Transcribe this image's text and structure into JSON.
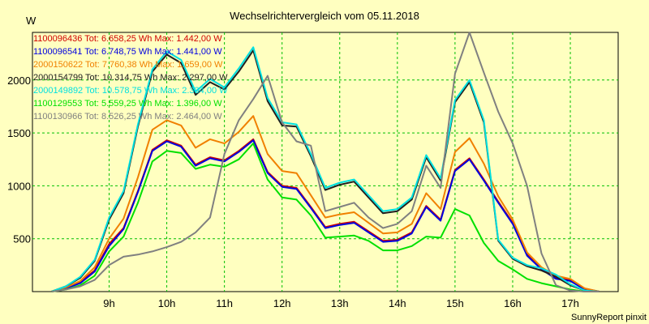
{
  "chart_data": {
    "type": "line",
    "title": "Wechselrichtervergleich vom 05.11.2018",
    "ylabel": "W",
    "xlim": [
      7.67,
      17.83
    ],
    "ylim": [
      0,
      2450
    ],
    "grid": true,
    "legend_position": "top-left",
    "x_ticks": [
      9,
      10,
      11,
      12,
      13,
      14,
      15,
      16,
      17
    ],
    "x_tick_labels": [
      "9h",
      "10h",
      "11h",
      "12h",
      "13h",
      "14h",
      "15h",
      "16h",
      "17h"
    ],
    "y_ticks": [
      500,
      1000,
      1500,
      2000
    ],
    "y_tick_labels": [
      "500",
      "1000",
      "1500",
      "2000"
    ],
    "x": [
      8.0,
      8.25,
      8.5,
      8.75,
      9.0,
      9.25,
      9.5,
      9.75,
      10.0,
      10.25,
      10.5,
      10.75,
      11.0,
      11.25,
      11.5,
      11.75,
      12.0,
      12.25,
      12.5,
      12.75,
      13.0,
      13.25,
      13.5,
      13.75,
      14.0,
      14.25,
      14.5,
      14.75,
      15.0,
      15.25,
      15.5,
      15.75,
      16.0,
      16.25,
      16.5,
      16.75,
      17.0,
      17.25,
      17.5
    ],
    "series": [
      {
        "name": "1100096436",
        "legend": "1100096436 Tot: 6.658,25 Wh Max: 1.442,00 W",
        "color": "#d00000",
        "values": [
          0,
          30,
          90,
          200,
          450,
          600,
          950,
          1340,
          1430,
          1380,
          1200,
          1270,
          1240,
          1330,
          1440,
          1130,
          1000,
          980,
          800,
          610,
          640,
          660,
          570,
          480,
          490,
          560,
          810,
          680,
          1150,
          1260,
          1060,
          850,
          650,
          350,
          220,
          130,
          110,
          30,
          0
        ]
      },
      {
        "name": "1100096541",
        "legend": "1100096541 Tot: 6.748,75 Wh Max: 1.441,00 W",
        "color": "#0000e0",
        "values": [
          0,
          30,
          80,
          190,
          430,
          590,
          940,
          1330,
          1420,
          1370,
          1190,
          1260,
          1230,
          1320,
          1430,
          1120,
          990,
          970,
          790,
          600,
          630,
          650,
          560,
          470,
          480,
          550,
          800,
          670,
          1140,
          1250,
          1050,
          840,
          640,
          340,
          210,
          120,
          100,
          20,
          0
        ]
      },
      {
        "name": "2000150622",
        "legend": "2000150622 Tot: 7.760,38 Wh Max: 1.659,00 W",
        "color": "#f08000",
        "values": [
          0,
          40,
          100,
          230,
          500,
          690,
          1080,
          1530,
          1620,
          1570,
          1360,
          1440,
          1400,
          1510,
          1660,
          1300,
          1140,
          1120,
          910,
          700,
          730,
          750,
          650,
          550,
          560,
          640,
          930,
          780,
          1320,
          1450,
          1210,
          900,
          680,
          370,
          230,
          150,
          120,
          30,
          0
        ]
      },
      {
        "name": "2000154799",
        "legend": "2000154799 Tot: 10.314,75 Wh Max: 2.297,00 W",
        "color": "#202020",
        "values": [
          0,
          50,
          130,
          290,
          680,
          930,
          1560,
          2080,
          2240,
          2160,
          1860,
          1980,
          1910,
          2080,
          2280,
          1800,
          1570,
          1560,
          1280,
          960,
          1010,
          1040,
          890,
          740,
          760,
          870,
          1270,
          1050,
          1790,
          1980,
          1600,
          480,
          310,
          240,
          200,
          140,
          60,
          10,
          0
        ]
      },
      {
        "name": "2000149892",
        "legend": "2000149892 Tot: 10.578,75 Wh Max: 2.334,00 W",
        "color": "#00e0e0",
        "values": [
          0,
          50,
          140,
          300,
          700,
          950,
          1580,
          2100,
          2270,
          2190,
          1890,
          2010,
          1930,
          2110,
          2310,
          1830,
          1600,
          1580,
          1300,
          980,
          1030,
          1060,
          910,
          760,
          780,
          890,
          1290,
          1070,
          1810,
          2000,
          1620,
          490,
          320,
          250,
          220,
          160,
          70,
          10,
          0
        ]
      },
      {
        "name": "1100129553",
        "legend": "1100129553 Tot: 5.559,25 Wh Max: 1.396,00 W",
        "color": "#00e000",
        "values": [
          0,
          20,
          60,
          150,
          380,
          520,
          840,
          1230,
          1330,
          1310,
          1160,
          1200,
          1180,
          1250,
          1400,
          1060,
          890,
          870,
          720,
          510,
          520,
          530,
          480,
          390,
          390,
          430,
          520,
          510,
          780,
          720,
          460,
          290,
          210,
          120,
          80,
          50,
          20,
          0,
          0
        ]
      },
      {
        "name": "1100130966",
        "legend": "1100130966 Tot: 8.526,25 Wh Max: 2.464,00 W",
        "color": "#808080",
        "values": [
          0,
          20,
          50,
          110,
          250,
          330,
          350,
          380,
          420,
          470,
          560,
          700,
          1300,
          1620,
          1820,
          2040,
          1600,
          1420,
          1380,
          760,
          800,
          840,
          700,
          600,
          640,
          760,
          1190,
          980,
          2060,
          2450,
          2070,
          1700,
          1400,
          1000,
          360,
          60,
          10,
          0,
          0
        ]
      }
    ]
  },
  "footer": "SunnyReport pinxit"
}
